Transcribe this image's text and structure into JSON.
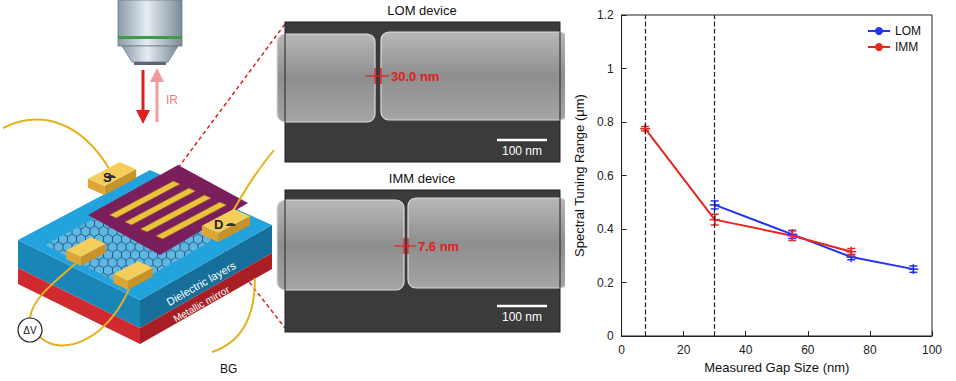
{
  "chart_data": {
    "type": "line",
    "xlabel": "Measured Gap Size (nm)",
    "ylabel": "Spectral Tuning Range (μm)",
    "xlim": [
      0,
      100
    ],
    "xticks": [
      0,
      20,
      40,
      60,
      80,
      100
    ],
    "ylim": [
      0,
      1.2
    ],
    "yticks": [
      0,
      0.2,
      0.4,
      0.6,
      0.8,
      1,
      1.2
    ],
    "grid": false,
    "legend": "top-right",
    "vlines": [
      7.6,
      30
    ],
    "series": [
      {
        "name": "LOM",
        "color": "#2433f0",
        "marker": "plus",
        "line_style": "solid",
        "x": [
          30,
          55,
          74,
          94
        ],
        "values": [
          0.49,
          0.38,
          0.295,
          0.25
        ],
        "errors": [
          0.015,
          0.015,
          0.01,
          0.012
        ]
      },
      {
        "name": "IMM",
        "color": "#e8251f",
        "marker": "plus",
        "line_style": "solid",
        "x": [
          7.6,
          30,
          55,
          74
        ],
        "values": [
          0.775,
          0.435,
          0.375,
          0.315
        ],
        "errors": [
          0.008,
          0.02,
          0.018,
          0.012
        ]
      }
    ]
  },
  "schematic": {
    "source": "S",
    "drain": "D",
    "light": "IR",
    "dielectric": "Dielectric layers",
    "mirror": "Metallic mirror",
    "gate": "BG",
    "voltage": "ΔV"
  },
  "sem_images": [
    {
      "title": "LOM device",
      "gap_label": "30.0 nm",
      "scale_bar": "100 nm"
    },
    {
      "title": "IMM device",
      "gap_label": "7.6 nm",
      "scale_bar": "100 nm"
    }
  ]
}
